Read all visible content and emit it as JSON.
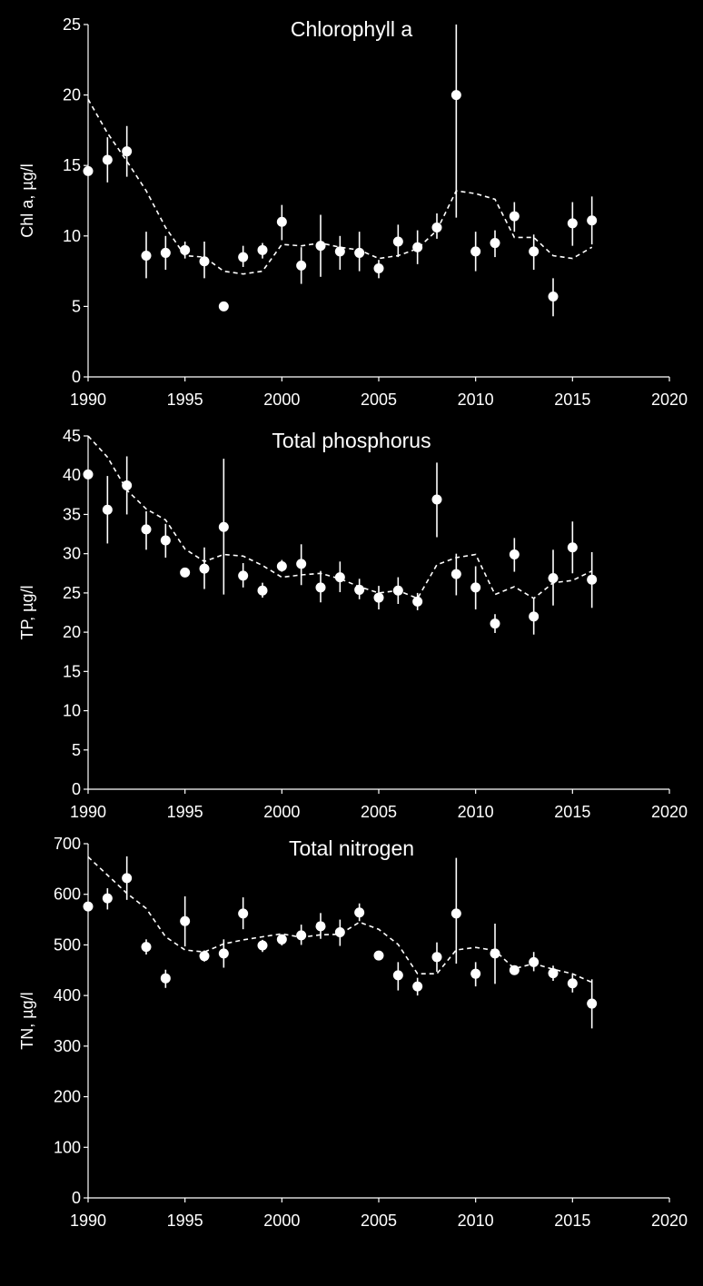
{
  "chart_data": [
    {
      "type": "scatter",
      "title": "Chlorophyll a",
      "ylabel": "Chl a, µg/l",
      "xlabel": "",
      "xlim": [
        1990,
        2020
      ],
      "ylim": [
        0,
        25
      ],
      "x_ticks": [
        1990,
        1995,
        2000,
        2005,
        2010,
        2015,
        2020
      ],
      "y_ticks": [
        0,
        5,
        10,
        15,
        20,
        25
      ],
      "grid": false,
      "points": {
        "x": [
          1990,
          1991,
          1992,
          1993,
          1994,
          1995,
          1996,
          1997,
          1998,
          1999,
          2000,
          2001,
          2002,
          2003,
          2004,
          2005,
          2006,
          2007,
          2008,
          2009,
          2010,
          2011,
          2012,
          2013,
          2014,
          2015,
          2016
        ],
        "y": [
          14.6,
          15.4,
          16.0,
          8.6,
          8.8,
          9.0,
          8.2,
          5.0,
          8.5,
          9.0,
          11.0,
          7.9,
          9.3,
          8.9,
          8.8,
          7.7,
          9.6,
          9.2,
          10.6,
          20.0,
          8.9,
          9.5,
          11.4,
          8.9,
          5.7,
          10.9,
          11.1
        ],
        "err_low": [
          null,
          13.8,
          14.2,
          7.0,
          7.6,
          8.4,
          7.0,
          null,
          7.8,
          8.4,
          9.7,
          6.6,
          7.1,
          7.6,
          7.5,
          7.0,
          8.5,
          8.0,
          9.8,
          11.3,
          7.5,
          8.5,
          10.3,
          7.6,
          4.3,
          9.3,
          9.4
        ],
        "err_high": [
          null,
          17.0,
          17.8,
          10.3,
          10.0,
          9.6,
          9.6,
          null,
          9.3,
          9.5,
          12.2,
          9.2,
          11.5,
          10.0,
          10.3,
          8.3,
          10.8,
          10.4,
          11.6,
          25.0,
          10.3,
          10.4,
          12.4,
          10.1,
          7.0,
          12.4,
          12.8
        ]
      },
      "trend": {
        "x": [
          1990,
          1991,
          1992,
          1993,
          1994,
          1995,
          1996,
          1997,
          1998,
          1999,
          2000,
          2001,
          2002,
          2003,
          2004,
          2005,
          2006,
          2007,
          2008,
          2009,
          2010,
          2011,
          2012,
          2013,
          2014,
          2015,
          2016
        ],
        "y": [
          19.7,
          17.3,
          15.3,
          13.2,
          10.6,
          8.6,
          8.5,
          7.5,
          7.3,
          7.5,
          9.4,
          9.3,
          9.5,
          9.2,
          9.0,
          8.4,
          8.6,
          9.1,
          10.4,
          13.2,
          13.0,
          12.6,
          9.9,
          9.9,
          8.6,
          8.4,
          9.2
        ]
      }
    },
    {
      "type": "scatter",
      "title": "Total phosphorus",
      "ylabel": "TP, µg/l",
      "xlabel": "",
      "xlim": [
        1990,
        2020
      ],
      "ylim": [
        0,
        45
      ],
      "x_ticks": [
        1990,
        1995,
        2000,
        2005,
        2010,
        2015,
        2020
      ],
      "y_ticks": [
        0,
        5,
        10,
        15,
        20,
        25,
        30,
        35,
        40,
        45
      ],
      "grid": false,
      "points": {
        "x": [
          1990,
          1991,
          1992,
          1993,
          1994,
          1995,
          1996,
          1997,
          1998,
          1999,
          2000,
          2001,
          2002,
          2003,
          2004,
          2005,
          2006,
          2007,
          2008,
          2009,
          2010,
          2011,
          2012,
          2013,
          2014,
          2015,
          2016
        ],
        "y": [
          40.1,
          35.6,
          38.7,
          33.1,
          31.7,
          27.6,
          28.1,
          33.4,
          27.2,
          25.3,
          28.4,
          28.7,
          25.7,
          27.0,
          25.4,
          24.4,
          25.3,
          23.9,
          36.9,
          27.4,
          25.7,
          21.1,
          29.9,
          22.0,
          26.9,
          30.8,
          26.7
        ],
        "err_low": [
          null,
          31.3,
          35.0,
          30.5,
          29.5,
          27.0,
          25.5,
          24.8,
          25.7,
          24.4,
          27.7,
          26.0,
          23.8,
          25.1,
          24.2,
          22.9,
          23.6,
          22.8,
          32.1,
          24.7,
          22.9,
          19.9,
          27.7,
          19.7,
          23.4,
          27.5,
          23.1
        ],
        "err_high": [
          null,
          39.9,
          42.4,
          35.4,
          33.8,
          28.1,
          30.8,
          42.1,
          28.8,
          26.3,
          29.2,
          31.2,
          27.8,
          29.0,
          26.8,
          25.9,
          27.0,
          25.0,
          41.6,
          30.0,
          28.4,
          22.3,
          32.0,
          24.4,
          30.5,
          34.1,
          30.2
        ]
      },
      "trend": {
        "x": [
          1990,
          1991,
          1992,
          1993,
          1994,
          1995,
          1996,
          1997,
          1998,
          1999,
          2000,
          2001,
          2002,
          2003,
          2004,
          2005,
          2006,
          2007,
          2008,
          2009,
          2010,
          2011,
          2012,
          2013,
          2014,
          2015,
          2016
        ],
        "y": [
          45.0,
          42.3,
          38.1,
          35.7,
          34.3,
          30.6,
          29.0,
          29.9,
          29.7,
          28.5,
          27.0,
          27.3,
          27.5,
          26.8,
          25.8,
          25.0,
          25.3,
          24.3,
          28.6,
          29.5,
          29.9,
          24.8,
          25.8,
          24.3,
          26.3,
          26.6,
          27.8
        ]
      }
    },
    {
      "type": "scatter",
      "title": "Total nitrogen",
      "ylabel": "TN, µg/l",
      "xlabel": "",
      "xlim": [
        1990,
        2020
      ],
      "ylim": [
        0,
        700
      ],
      "x_ticks": [
        1990,
        1995,
        2000,
        2005,
        2010,
        2015,
        2020
      ],
      "y_ticks": [
        0,
        100,
        200,
        300,
        400,
        500,
        600,
        700
      ],
      "grid": false,
      "points": {
        "x": [
          1990,
          1991,
          1992,
          1993,
          1994,
          1995,
          1996,
          1997,
          1998,
          1999,
          2000,
          2001,
          2002,
          2003,
          2004,
          2005,
          2006,
          2007,
          2008,
          2009,
          2010,
          2011,
          2012,
          2013,
          2014,
          2015,
          2016
        ],
        "y": [
          576,
          592,
          632,
          496,
          434,
          547,
          478,
          483,
          562,
          499,
          511,
          519,
          537,
          525,
          564,
          479,
          440,
          418,
          476,
          562,
          443,
          483,
          450,
          466,
          444,
          424,
          384
        ],
        "err_low": [
          null,
          570,
          589,
          481,
          415,
          497,
          467,
          455,
          531,
          486,
          499,
          500,
          512,
          498,
          547,
          null,
          410,
          400,
          447,
          463,
          418,
          423,
          null,
          448,
          429,
          406,
          335
        ],
        "err_high": [
          null,
          612,
          675,
          511,
          451,
          596,
          489,
          511,
          594,
          510,
          521,
          540,
          563,
          550,
          582,
          null,
          466,
          435,
          505,
          672,
          466,
          542,
          null,
          486,
          459,
          442,
          432
        ]
      },
      "trend": {
        "x": [
          1990,
          1991,
          1992,
          1993,
          1994,
          1995,
          1996,
          1997,
          1998,
          1999,
          2000,
          2001,
          2002,
          2003,
          2004,
          2005,
          2006,
          2007,
          2008,
          2009,
          2010,
          2011,
          2012,
          2013,
          2014,
          2015,
          2016
        ],
        "y": [
          674,
          638,
          602,
          572,
          516,
          490,
          486,
          502,
          510,
          516,
          522,
          515,
          520,
          521,
          545,
          531,
          501,
          443,
          443,
          490,
          495,
          489,
          453,
          463,
          452,
          443,
          426
        ]
      }
    }
  ]
}
